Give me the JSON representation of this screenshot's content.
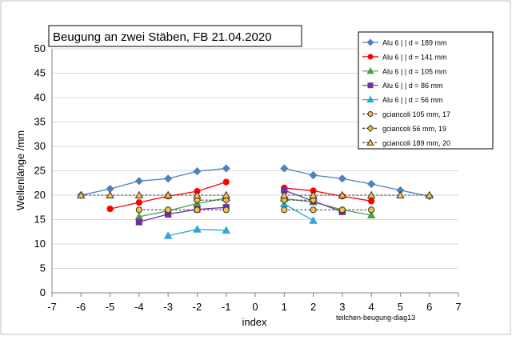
{
  "chart_data": {
    "type": "scatter",
    "title": "Beugung an zwei Stäben, FB  21.04.2020",
    "xlabel": "index",
    "ylabel": "Wellenlänge /mm",
    "footnote": "teilchen-beugung-diag13",
    "xlim": [
      -7,
      7
    ],
    "ylim": [
      0,
      50
    ],
    "x_ticks": [
      -7,
      -6,
      -5,
      -4,
      -3,
      -2,
      -1,
      0,
      1,
      2,
      3,
      4,
      5,
      6,
      7
    ],
    "y_ticks": [
      0,
      5,
      10,
      15,
      20,
      25,
      30,
      35,
      40,
      45,
      50
    ],
    "grid": "horizontal",
    "legend_position": "right",
    "series": [
      {
        "name": "Alu 6 | | d = 189 mm",
        "color": "#4f81bd",
        "marker": "diamond",
        "line": "solid",
        "segments": [
          [
            [
              -6,
              20.0
            ],
            [
              -5,
              21.3
            ],
            [
              -4,
              22.9
            ],
            [
              -3,
              23.4
            ],
            [
              -2,
              24.9
            ],
            [
              -1,
              25.5
            ]
          ],
          [
            [
              1,
              25.5
            ],
            [
              2,
              24.1
            ],
            [
              3,
              23.4
            ],
            [
              4,
              22.3
            ],
            [
              5,
              21.0
            ],
            [
              6,
              19.8
            ]
          ]
        ]
      },
      {
        "name": "Alu 6 | | d = 141 mm",
        "color": "#ff0000",
        "marker": "circle",
        "line": "solid",
        "segments": [
          [
            [
              -5,
              17.2
            ],
            [
              -4,
              18.5
            ],
            [
              -3,
              19.8
            ],
            [
              -2,
              20.8
            ],
            [
              -1,
              22.7
            ]
          ],
          [
            [
              1,
              21.5
            ],
            [
              2,
              20.9
            ],
            [
              3,
              19.8
            ],
            [
              4,
              18.8
            ]
          ]
        ]
      },
      {
        "name": "Alu 6 | | d = 105 mm",
        "color": "#4aa147",
        "marker": "triangle",
        "line": "solid",
        "segments": [
          [
            [
              -4,
              15.6
            ],
            [
              -3,
              16.8
            ],
            [
              -2,
              18.3
            ],
            [
              -1,
              19.4
            ]
          ],
          [
            [
              1,
              19.3
            ],
            [
              2,
              18.6
            ],
            [
              3,
              17.0
            ],
            [
              4,
              15.9
            ]
          ]
        ]
      },
      {
        "name": "Alu 6 | | d =  86 mm",
        "color": "#7030a0",
        "marker": "square",
        "line": "solid",
        "segments": [
          [
            [
              -4,
              14.5
            ],
            [
              -3,
              16.1
            ],
            [
              -2,
              17.1
            ],
            [
              -1,
              17.5
            ]
          ],
          [
            [
              1,
              21.0
            ],
            [
              2,
              18.8
            ],
            [
              3,
              16.6
            ]
          ]
        ]
      },
      {
        "name": "Alu 6 | | d =  56 mm",
        "color": "#29a8d8",
        "marker": "triangle",
        "line": "solid",
        "segments": [
          [
            [
              -3,
              11.7
            ],
            [
              -2,
              13.0
            ],
            [
              -1,
              12.8
            ]
          ],
          [
            [
              1,
              18.2
            ],
            [
              2,
              14.8
            ]
          ]
        ]
      },
      {
        "name": "gciancoli 105 mm, 17",
        "color": "#333333",
        "marker_fill": "#f4c242",
        "marker": "circle",
        "line": "dashed",
        "segments": [
          [
            [
              -4,
              17.0
            ],
            [
              -3,
              17.0
            ],
            [
              -2,
              17.0
            ],
            [
              -1,
              17.0
            ]
          ],
          [
            [
              1,
              17.0
            ],
            [
              2,
              17.0
            ],
            [
              3,
              17.0
            ],
            [
              4,
              17.0
            ]
          ]
        ]
      },
      {
        "name": "gciancoli  56 mm, 19",
        "color": "#333333",
        "marker_fill": "#f4c242",
        "marker": "diamond",
        "line": "dashed",
        "segments": [
          [
            [
              -2,
              19.0
            ],
            [
              -1,
              19.0
            ]
          ],
          [
            [
              1,
              19.0
            ],
            [
              2,
              19.0
            ]
          ]
        ]
      },
      {
        "name": "gciancoli 189 mm, 20",
        "color": "#333333",
        "marker_fill": "#f4c242",
        "marker": "triangle",
        "line": "dashed",
        "segments": [
          [
            [
              -6,
              20.0
            ],
            [
              -5,
              20.0
            ],
            [
              -4,
              20.0
            ],
            [
              -3,
              20.0
            ],
            [
              -2,
              20.0
            ],
            [
              -1,
              20.0
            ]
          ],
          [
            [
              1,
              20.0
            ],
            [
              2,
              20.0
            ],
            [
              3,
              20.0
            ],
            [
              4,
              20.0
            ],
            [
              5,
              20.0
            ],
            [
              6,
              20.0
            ]
          ]
        ]
      }
    ]
  }
}
